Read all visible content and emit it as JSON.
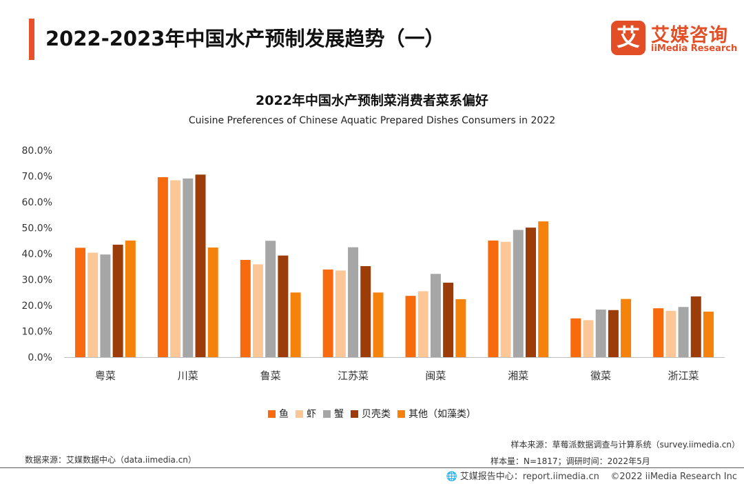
{
  "header": {
    "title": "2022-2023年中国水产预制发展趋势（一）",
    "logo_mark": "艾",
    "logo_cn": "艾媒咨询",
    "logo_en": "iiMedia Research",
    "accent_color": "#e8512a"
  },
  "chart_data": {
    "type": "bar",
    "title": "2022年中国水产预制菜消费者菜系偏好",
    "subtitle": "Cuisine Preferences of Chinese Aquatic Prepared Dishes Consumers in 2022",
    "categories": [
      "粤菜",
      "川菜",
      "鲁菜",
      "江苏菜",
      "闽菜",
      "湘菜",
      "徽菜",
      "浙江菜"
    ],
    "series": [
      {
        "name": "鱼",
        "color": "#f86a0e",
        "values": [
          42.3,
          69.6,
          37.6,
          33.9,
          23.7,
          45.1,
          15.0,
          18.9
        ]
      },
      {
        "name": "虾",
        "color": "#fcc796",
        "values": [
          40.4,
          68.4,
          35.9,
          33.5,
          25.5,
          44.6,
          14.3,
          17.9
        ]
      },
      {
        "name": "蟹",
        "color": "#a6a6a6",
        "values": [
          39.7,
          69.1,
          45.0,
          42.5,
          32.2,
          49.2,
          18.4,
          19.4
        ]
      },
      {
        "name": "贝壳类",
        "color": "#9c3c08",
        "values": [
          43.5,
          70.6,
          39.3,
          35.2,
          28.8,
          50.1,
          18.2,
          23.5
        ]
      },
      {
        "name": "其他（如藻类）",
        "color": "#f5820a",
        "values": [
          45.1,
          42.4,
          25.0,
          25.0,
          22.4,
          52.5,
          22.5,
          17.6
        ]
      }
    ],
    "y_ticks": [
      "0.0%",
      "10.0%",
      "20.0%",
      "30.0%",
      "40.0%",
      "50.0%",
      "60.0%",
      "70.0%",
      "80.0%"
    ],
    "ylim": [
      0,
      80
    ],
    "y_unit": "%",
    "grid": false,
    "legend_position": "bottom"
  },
  "notes": {
    "data_source": "数据来源：艾媒数据中心（data.iimedia.cn）",
    "sample_source": "样本来源：草莓派数据调查与计算系统（survey.iimedia.cn）",
    "sample_size": "样本量：N=1817；调研时间：2022年5月"
  },
  "footer": {
    "report_center": "艾媒报告中心：report.iimedia.cn",
    "copyright": "©2022  iiMedia Research  Inc"
  }
}
